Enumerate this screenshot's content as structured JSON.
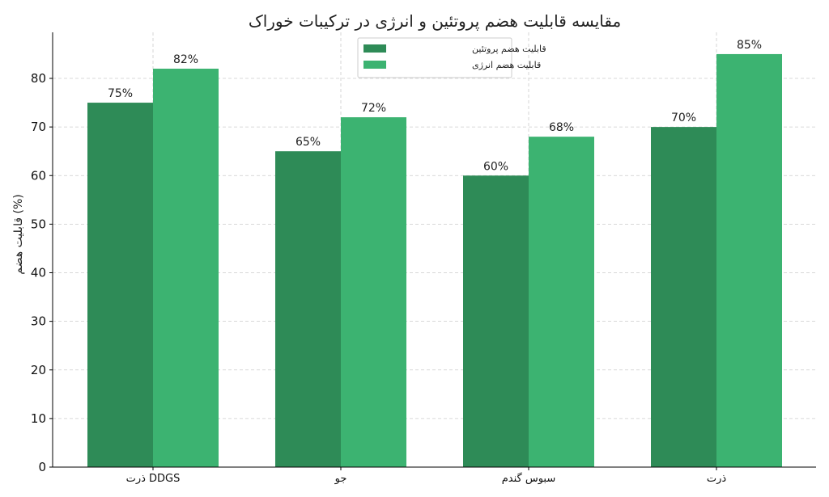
{
  "chart_data": {
    "type": "bar",
    "title": "مقایسه قابلیت هضم پروتئین و انرژی در ترکیبات خوراک",
    "xlabel": "",
    "ylabel": "قابلیت هضم (%)",
    "categories": [
      "ذرت DDGS",
      "جو",
      "سبوس گندم",
      "ذرت"
    ],
    "series": [
      {
        "name": "قابلیت هضم پروتئین",
        "values": [
          75,
          65,
          60,
          70
        ],
        "labels": [
          "75%",
          "65%",
          "60%",
          "70%"
        ],
        "color": "#2e8b57"
      },
      {
        "name": "قابلیت هضم انرژی",
        "values": [
          82,
          72,
          68,
          85
        ],
        "labels": [
          "82%",
          "72%",
          "68%",
          "85%"
        ],
        "color": "#3cb371"
      }
    ],
    "ylim": [
      0,
      90
    ],
    "yticks": [
      0,
      10,
      20,
      30,
      40,
      50,
      60,
      70,
      80
    ],
    "grid": true,
    "legend_position": "top-center"
  }
}
